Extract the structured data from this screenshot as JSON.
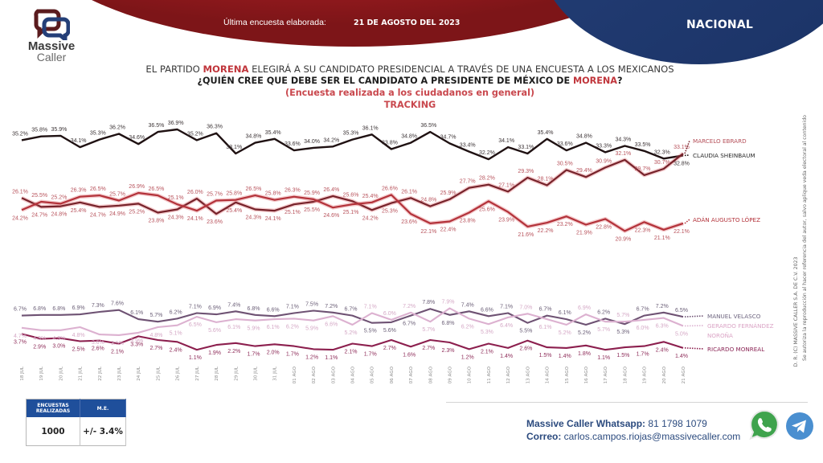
{
  "header": {
    "last_survey_label": "Última encuesta elaborada:",
    "last_survey_date": "21 DE AGOSTO DEL 2023",
    "scope": "NACIONAL"
  },
  "logo": {
    "line1": "Massive",
    "line2": "Caller",
    "icon": "speech-bubbles-icon"
  },
  "title": {
    "line1_pre": "EL PARTIDO ",
    "line1_highlight": "MORENA",
    "line1_post": " ELEGIRÁ A SU CANDIDATO PRESIDENCIAL A TRAVÉS DE UNA ENCUESTA A LOS MEXICANOS",
    "line2_pre": "¿QUIÉN CREE QUE DEBE SER EL CANDIDATO A PRESIDENTE DE MÉXICO DE ",
    "line2_highlight": "MORENA",
    "line2_post": "?",
    "line3": "(Encuesta realizada a los ciudadanos en general)",
    "line4": "TRACKING"
  },
  "chart_data": {
    "type": "line",
    "title": "TRACKING",
    "xlabel": "",
    "ylabel": "",
    "unit": "%",
    "grid": false,
    "legend_placement": "right",
    "categories": [
      "18 JUL",
      "19 JUL",
      "20 JUL",
      "21 JUL",
      "22 JUL",
      "23 JUL",
      "24 JUL",
      "25 JUL",
      "26 JUL",
      "27 JUL",
      "28 JUL",
      "29 JUL",
      "30 JUL",
      "31 JUL",
      "01 AGO",
      "02 AGO",
      "03 AGO",
      "04 AGO",
      "05 AGO",
      "06 AGO",
      "07 AGO",
      "08 AGO",
      "09 AGO",
      "10 AGO",
      "11 AGO",
      "12 AGO",
      "13 AGO",
      "14 AGO",
      "15 AGO",
      "16 AGO",
      "17 AGO",
      "18 AGO",
      "19 AGO",
      "20 AGO",
      "21 AGO"
    ],
    "series": [
      {
        "key": "sheinbaum",
        "name": "CLAUDIA SHEINBAUM",
        "color": "#1f1112",
        "label_color": "#3c3436",
        "legend_color": "#2a2a2a",
        "values": [
          35.2,
          35.8,
          35.9,
          34.1,
          35.3,
          36.2,
          34.6,
          36.5,
          36.9,
          35.2,
          36.3,
          33.1,
          34.8,
          35.4,
          33.6,
          34.0,
          34.2,
          35.3,
          36.1,
          33.8,
          34.8,
          36.5,
          34.7,
          33.4,
          32.2,
          34.1,
          33.1,
          35.4,
          33.6,
          34.8,
          33.3,
          34.3,
          33.5,
          32.3,
          32.8
        ]
      },
      {
        "key": "ebrard",
        "name": "MARCELO EBRARD",
        "color": "#76222a",
        "label_color": "#b8535c",
        "legend_color": "#b5505a",
        "values": [
          26.1,
          24.7,
          24.8,
          25.4,
          24.7,
          24.9,
          25.2,
          23.8,
          24.3,
          26.0,
          23.6,
          25.4,
          24.3,
          24.1,
          25.1,
          25.5,
          26.4,
          25.6,
          24.2,
          25.3,
          26.1,
          24.8,
          25.9,
          27.7,
          28.2,
          27.1,
          29.3,
          28.1,
          30.5,
          29.4,
          30.9,
          32.1,
          29.7,
          30.7,
          33.1
        ]
      },
      {
        "key": "adan",
        "name": "ADÁN AUGUSTO LÓPEZ",
        "color": "#b3323a",
        "label_color": "#b8535c",
        "legend_color": "#b3333b",
        "values": [
          24.2,
          25.5,
          25.2,
          26.3,
          26.5,
          25.7,
          26.9,
          26.5,
          25.1,
          24.1,
          25.7,
          25.8,
          26.5,
          25.8,
          26.3,
          25.9,
          24.6,
          25.1,
          25.4,
          26.6,
          23.6,
          22.1,
          22.4,
          23.8,
          25.6,
          23.9,
          21.6,
          22.2,
          23.2,
          21.9,
          22.8,
          20.9,
          22.3,
          21.1,
          22.1
        ]
      },
      {
        "key": "velasco",
        "name": "MANUEL VELASCO",
        "color": "#6e5273",
        "label_color": "#6c6078",
        "legend_color": "#6f6680",
        "values": [
          6.7,
          6.8,
          6.8,
          6.9,
          7.3,
          7.6,
          6.1,
          5.7,
          6.2,
          7.1,
          6.9,
          7.4,
          6.8,
          6.6,
          7.1,
          7.5,
          7.2,
          6.7,
          5.5,
          5.6,
          6.7,
          7.8,
          6.8,
          7.4,
          6.6,
          7.1,
          5.5,
          6.7,
          6.1,
          5.2,
          6.2,
          5.3,
          6.7,
          7.2,
          6.5
        ]
      },
      {
        "key": "norona",
        "name": "GERARDO FERNÁNDEZ NOROÑA",
        "color": "#dcb1d0",
        "label_color": "#d5a9c6",
        "legend_color": "#dba5c6",
        "values": [
          4.7,
          4.3,
          4.3,
          4.8,
          3.6,
          3.5,
          3.9,
          4.8,
          5.1,
          6.5,
          5.6,
          6.1,
          5.9,
          6.1,
          6.2,
          5.9,
          6.6,
          5.2,
          7.1,
          6.0,
          7.2,
          5.7,
          7.9,
          6.2,
          5.3,
          6.4,
          7.0,
          6.1,
          5.2,
          6.9,
          5.7,
          5.7,
          6.0,
          6.3,
          5.0
        ]
      },
      {
        "key": "monreal",
        "name": "RICARDO MONREAL",
        "color": "#8c1f4e",
        "label_color": "#8e2c59",
        "legend_color": "#8b2656",
        "values": [
          3.7,
          2.9,
          3.0,
          2.5,
          2.6,
          2.1,
          3.3,
          2.7,
          2.4,
          1.1,
          1.9,
          2.2,
          1.7,
          2.0,
          1.7,
          1.2,
          1.1,
          2.1,
          1.7,
          2.7,
          1.6,
          2.7,
          2.3,
          1.2,
          2.1,
          1.4,
          2.6,
          1.5,
          1.4,
          1.8,
          1.1,
          1.5,
          1.7,
          2.4,
          1.4
        ]
      }
    ]
  },
  "stats_table": {
    "headers": [
      "ENCUESTAS REALIZADAS",
      "M.E."
    ],
    "values": [
      "1000",
      "+/- 3.4%"
    ]
  },
  "contact": {
    "whatsapp_label": "Massive Caller Whatsapp:",
    "whatsapp_number": " 81 1798 1079",
    "email_label": "Correo:",
    "email": " carlos.campos.riojas@massivecaller.com",
    "icons": [
      "whatsapp-icon",
      "telegram-icon"
    ]
  },
  "copyright": {
    "line1": "D. R. (C) MASSIVE CALLER S.A. DE C.V. 2023",
    "line2": "Se autoriza la reproducción al hacer referencia del autor, salvo aplique veda electoral al contenido"
  },
  "colors": {
    "header_red": "#a51d22",
    "header_blue": "#1f3a70",
    "accent_red": "#c0353b",
    "table_blue": "#1f4f9b",
    "contact_blue": "#2b4a7e",
    "whatsapp_green": "#3fa34d",
    "telegram_blue": "#4a8fd0"
  }
}
